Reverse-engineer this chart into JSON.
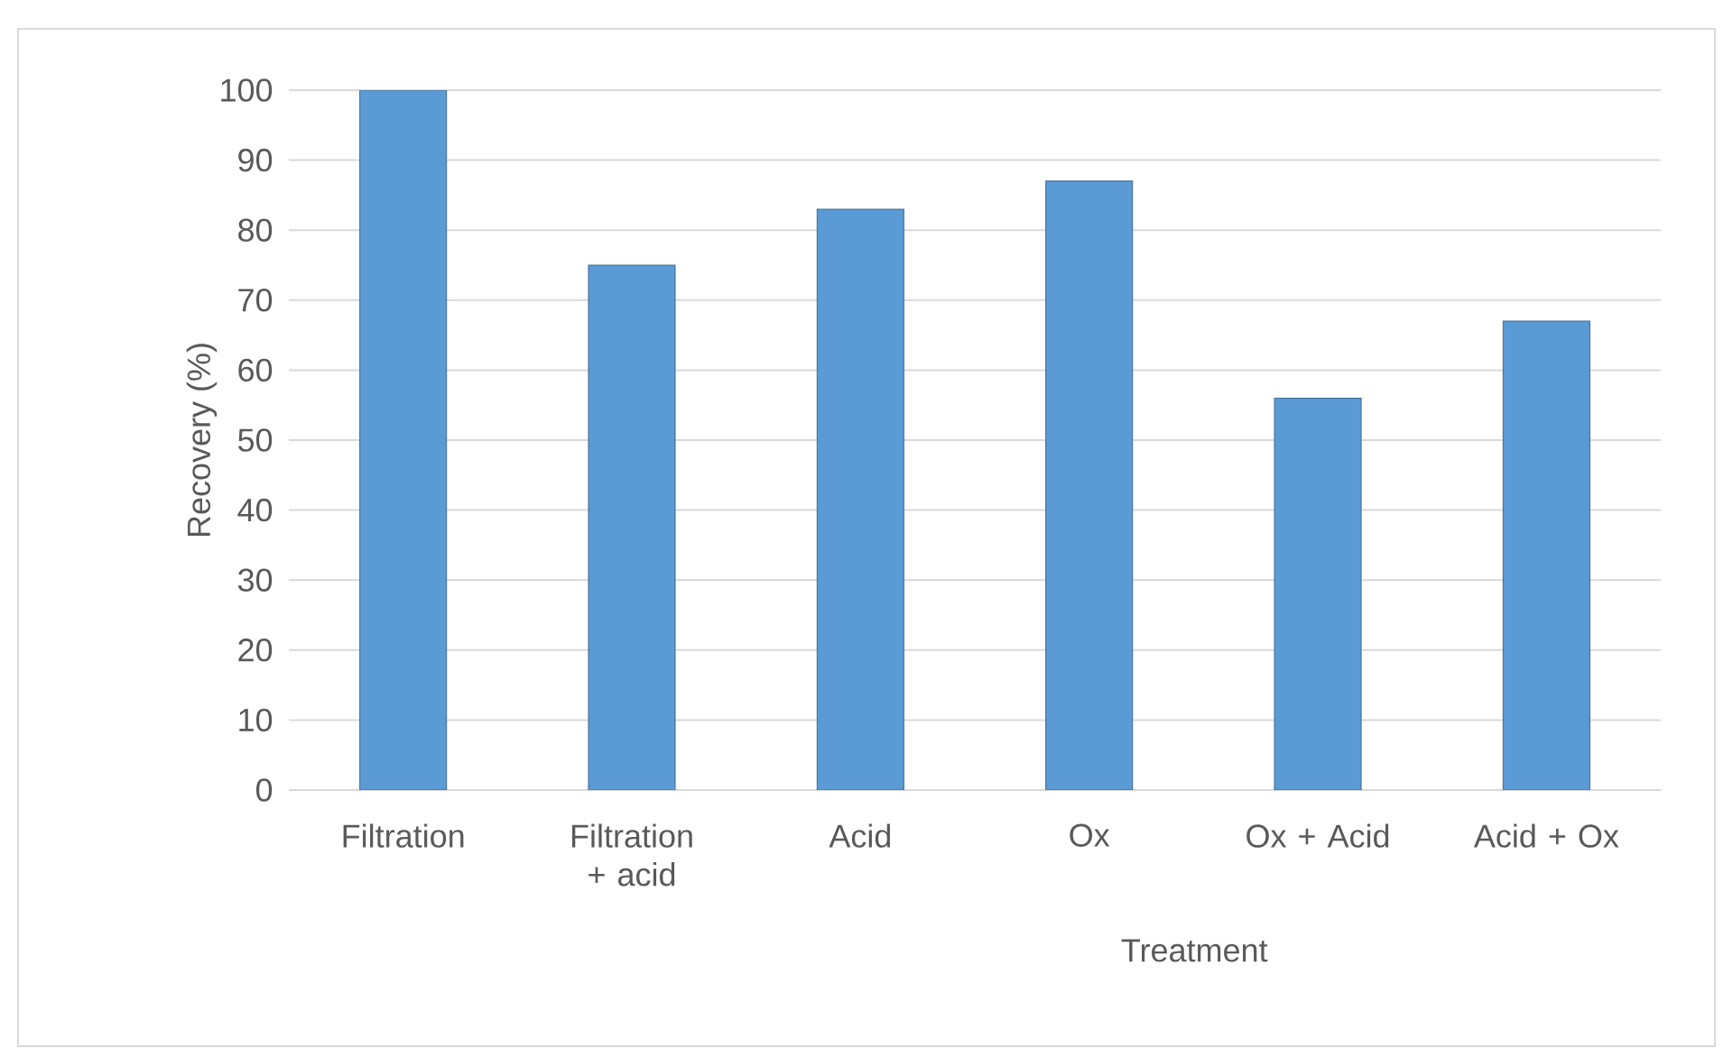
{
  "chart_data": {
    "type": "bar",
    "xlabel": "Treatment",
    "ylabel": "Recovery (%)",
    "categories": [
      "Filtration",
      "Filtration + acid",
      "Acid",
      "Ox",
      "Ox + Acid",
      "Acid + Ox"
    ],
    "values": [
      100,
      75,
      83,
      87,
      56,
      67
    ],
    "color": "#5b9bd5",
    "ylim": [
      0,
      100
    ],
    "yticks": [
      0,
      10,
      20,
      30,
      40,
      50,
      60,
      70,
      80,
      90,
      100
    ],
    "grid": "y"
  }
}
